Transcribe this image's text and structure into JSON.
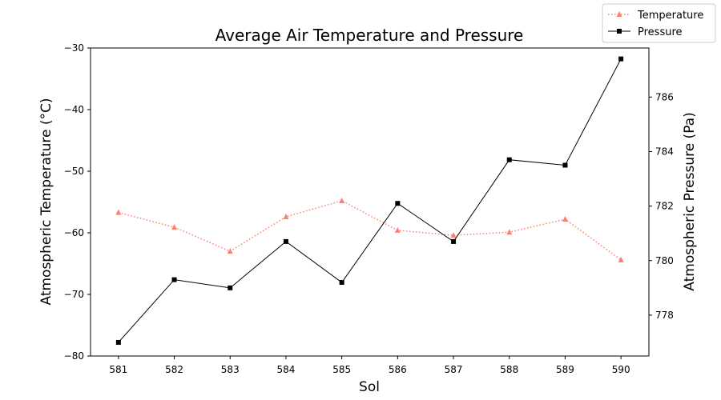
{
  "chart_data": {
    "type": "line",
    "title": "Average Air Temperature and Pressure",
    "xlabel": "Sol",
    "ylabel_left": "Atmospheric Temperature (°C)",
    "ylabel_right": "Atmospheric Pressure (Pa)",
    "x": [
      581,
      582,
      583,
      584,
      585,
      586,
      587,
      588,
      589,
      590
    ],
    "xlim": [
      580.5,
      590.5
    ],
    "ylim_left": [
      -80,
      -30
    ],
    "yticks_left": [
      -80,
      -70,
      -60,
      -50,
      -40,
      -30
    ],
    "ylim_right": [
      776.5,
      787.8
    ],
    "yticks_right": [
      778,
      780,
      782,
      784,
      786
    ],
    "grid": false,
    "legend_position": "top-right (outside plot)",
    "series": [
      {
        "name": "Temperature",
        "axis": "left",
        "color": "#fa8072",
        "linestyle": "dotted",
        "marker": "triangle",
        "values": [
          -56.7,
          -59.1,
          -63.0,
          -57.4,
          -54.8,
          -59.6,
          -60.4,
          -59.9,
          -57.8,
          -64.4
        ]
      },
      {
        "name": "Pressure",
        "axis": "right",
        "color": "#000000",
        "linestyle": "solid",
        "marker": "square",
        "values": [
          777.0,
          779.3,
          779.0,
          780.7,
          779.2,
          782.1,
          780.7,
          783.7,
          783.5,
          787.4
        ]
      }
    ]
  }
}
